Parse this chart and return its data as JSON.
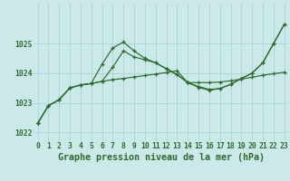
{
  "background_color": "#cce9e9",
  "grid_color": "#aad4d4",
  "line_color": "#2d6b2d",
  "title": "Graphe pression niveau de la mer (hPa)",
  "tick_fontsize": 5.8,
  "label_fontsize": 7.2,
  "xlim_min": -0.4,
  "xlim_max": 23.4,
  "ylim_min": 1021.7,
  "ylim_max": 1026.35,
  "yticks": [
    1022,
    1023,
    1024,
    1025
  ],
  "xticks": [
    0,
    1,
    2,
    3,
    4,
    5,
    6,
    7,
    8,
    9,
    10,
    11,
    12,
    13,
    14,
    15,
    16,
    17,
    18,
    19,
    20,
    21,
    22,
    23
  ],
  "s1_x": [
    0,
    1,
    2,
    3,
    4,
    5,
    6,
    7,
    8,
    9,
    10,
    11,
    12,
    13,
    14,
    15,
    16,
    17,
    18,
    19,
    20,
    21,
    22,
    23
  ],
  "s1_y": [
    1022.3,
    1022.9,
    1023.1,
    1023.5,
    1023.6,
    1023.65,
    1023.72,
    1023.78,
    1023.82,
    1023.87,
    1023.92,
    1023.97,
    1024.02,
    1024.08,
    1023.68,
    1023.68,
    1023.68,
    1023.7,
    1023.74,
    1023.8,
    1023.86,
    1023.93,
    1023.98,
    1024.03
  ],
  "s2_x": [
    0,
    1,
    2,
    3,
    4,
    5,
    6,
    7,
    8,
    9,
    10,
    11,
    12,
    13,
    14,
    15,
    16,
    17,
    18,
    19,
    20,
    21,
    22,
    23
  ],
  "s2_y": [
    1022.3,
    1022.9,
    1023.1,
    1023.5,
    1023.6,
    1023.65,
    1024.3,
    1024.85,
    1025.05,
    1024.75,
    1024.5,
    1024.35,
    1024.15,
    1023.95,
    1023.68,
    1023.52,
    1023.42,
    1023.48,
    1023.62,
    1023.82,
    1024.0,
    1024.35,
    1025.0,
    1025.65
  ],
  "s3_x": [
    0,
    1,
    2,
    3,
    4,
    5,
    6,
    7,
    8,
    9,
    10,
    11,
    12,
    13,
    14,
    15,
    16,
    17,
    18,
    19,
    20,
    21,
    22,
    23
  ],
  "s3_y": [
    1022.3,
    1022.9,
    1023.1,
    1023.5,
    1023.6,
    1023.65,
    1023.72,
    1024.2,
    1024.75,
    1024.55,
    1024.45,
    1024.35,
    1024.15,
    1023.95,
    1023.68,
    1023.55,
    1023.45,
    1023.48,
    1023.62,
    1023.82,
    1024.0,
    1024.35,
    1025.0,
    1025.65
  ]
}
